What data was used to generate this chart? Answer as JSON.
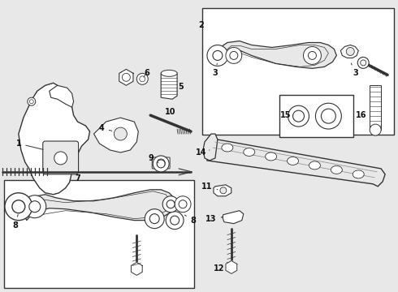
{
  "background_color": "#e8e8e8",
  "line_color": "#333333",
  "white": "#ffffff",
  "gray_fill": "#d8d8d8",
  "figsize": [
    4.9,
    3.6
  ],
  "dpi": 100
}
